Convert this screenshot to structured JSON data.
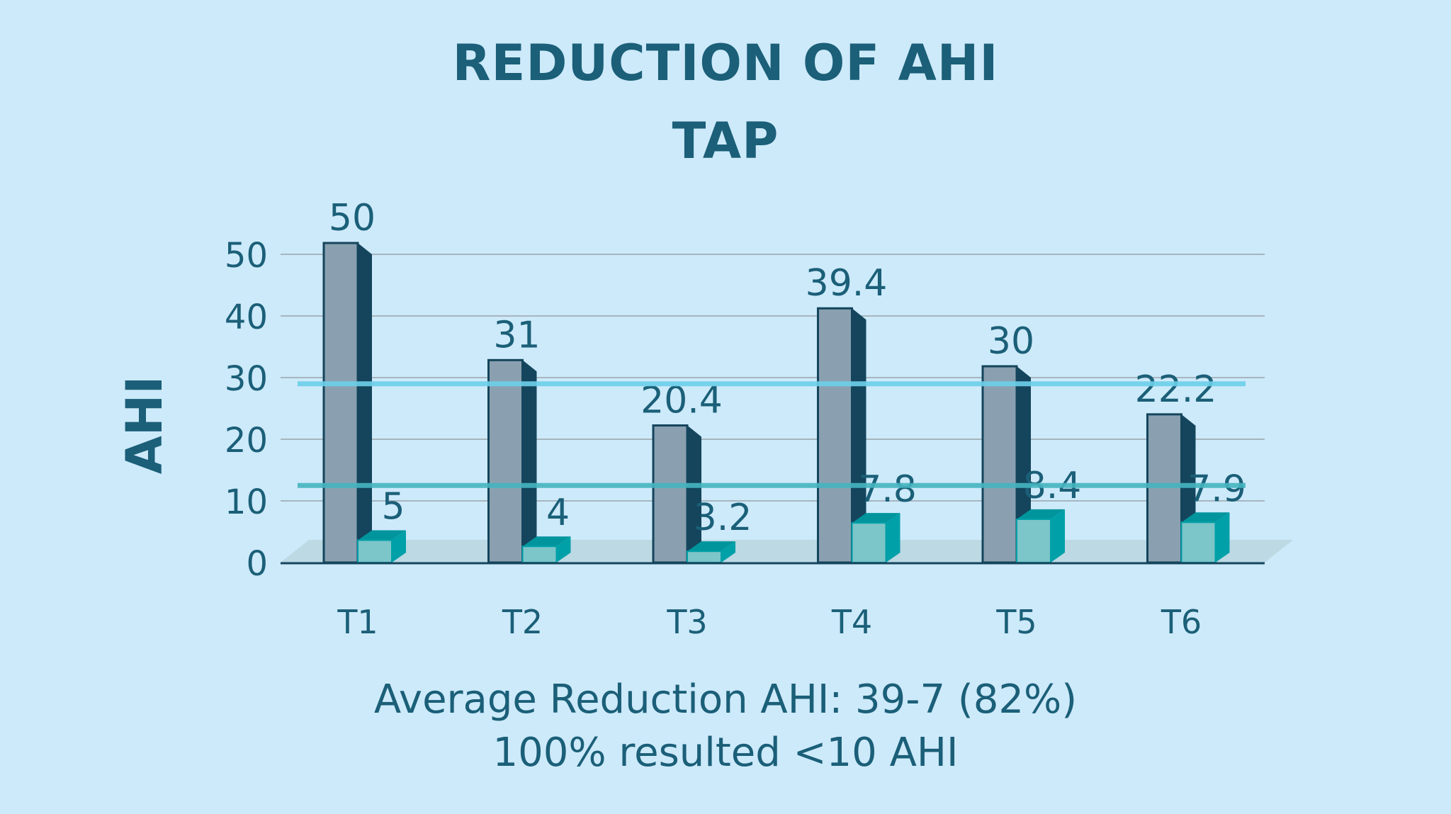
{
  "chart_data": {
    "type": "bar",
    "title": "REDUCTION OF AHI",
    "subtitle": "TAP",
    "ylabel": "AHI",
    "xlabel": "",
    "ylim": [
      0,
      50
    ],
    "yticks": [
      "0",
      "10",
      "20",
      "30",
      "40",
      "50"
    ],
    "categories": [
      "T1",
      "T2",
      "T3",
      "T4",
      "T5",
      "T6"
    ],
    "series": [
      {
        "values": [
          50,
          31,
          20.4,
          39.4,
          30,
          22.2
        ],
        "labels": [
          "50",
          "31",
          "20.4",
          "39.4",
          "30",
          "22.2"
        ],
        "color": "#8aa0b0"
      },
      {
        "values": [
          5,
          4,
          3.2,
          7.8,
          8.4,
          7.9
        ],
        "labels": [
          "5",
          "4",
          "3.2",
          "7.8",
          "8.4",
          "7.9"
        ],
        "color": "#7cc5c8"
      }
    ],
    "reference_lines": [
      {
        "value": 29,
        "color": "#6dd0ea"
      },
      {
        "value": 12.5,
        "color": "#45b5c0"
      }
    ],
    "grid": true,
    "legend": "none"
  },
  "notes": {
    "line1": "Average Reduction AHI: 39-7 (82%)",
    "line2": "100% resulted <10 AHI"
  }
}
